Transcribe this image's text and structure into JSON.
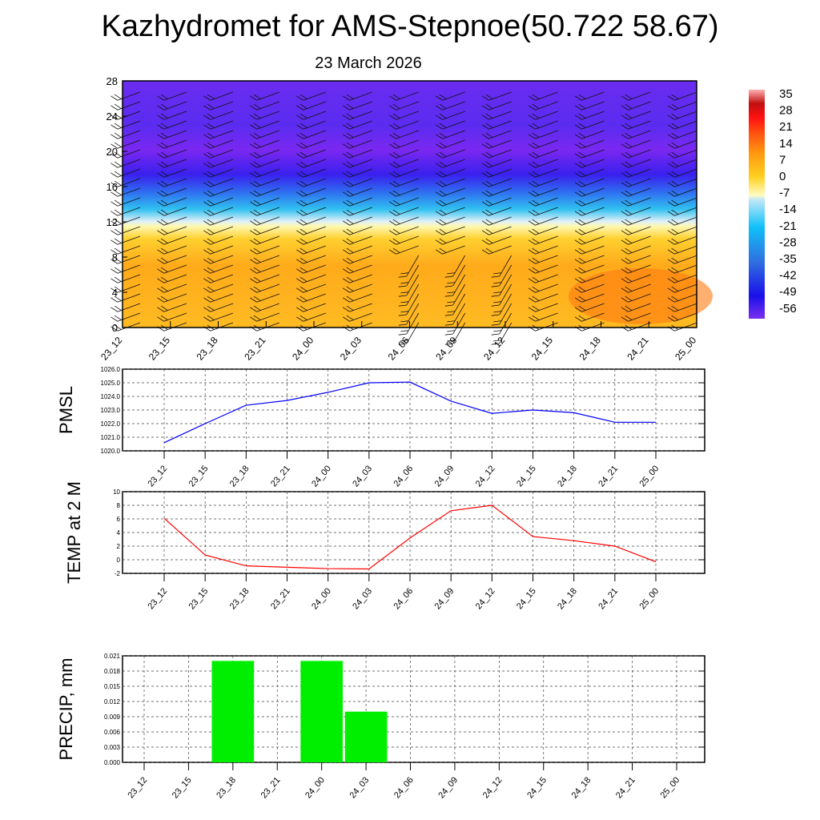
{
  "chart_data": [
    {
      "type": "heatmap",
      "title": "Kazhydromet for AMS-Stepnoe(50.722 58.67)",
      "subtitle": "23 March 2026",
      "x_categories": [
        "23_12",
        "23_15",
        "23_18",
        "23_21",
        "24_00",
        "24_03",
        "24_06",
        "24_09",
        "24_12",
        "24_15",
        "24_18",
        "24_21",
        "25_00"
      ],
      "yticks": [
        0,
        4,
        8,
        12,
        16,
        20,
        24,
        28
      ],
      "ylim": [
        0,
        28
      ],
      "colorbar": {
        "labels": [
          "35",
          "28",
          "21",
          "14",
          "7",
          "0",
          "-7",
          "-14",
          "-21",
          "-28",
          "-35",
          "-42",
          "-49",
          "-56"
        ]
      }
    },
    {
      "type": "line",
      "ylabel": "PMSL",
      "ylim": [
        1020,
        1026
      ],
      "yticks": [
        "1020.0",
        "1021.0",
        "1022.0",
        "1023.0",
        "1024.0",
        "1025.0",
        "1026.0"
      ],
      "categories": [
        "23_12",
        "23_15",
        "23_18",
        "23_21",
        "24_00",
        "24_03",
        "24_06",
        "24_09",
        "24_12",
        "24_15",
        "24_18",
        "24_21",
        "25_00"
      ],
      "values": [
        1020.6,
        1022.0,
        1023.35,
        1023.7,
        1024.3,
        1025.0,
        1025.05,
        1023.65,
        1022.75,
        1023.0,
        1022.8,
        1022.1,
        1022.1
      ],
      "color": "#0000ff"
    },
    {
      "type": "line",
      "ylabel": "TEMP at 2 M",
      "ylim": [
        -2,
        10
      ],
      "yticks": [
        "-2",
        "0",
        "2",
        "4",
        "6",
        "8",
        "10"
      ],
      "categories": [
        "23_12",
        "23_15",
        "23_18",
        "23_21",
        "24_00",
        "24_03",
        "24_06",
        "24_09",
        "24_12",
        "24_15",
        "24_18",
        "24_21",
        "25_00"
      ],
      "values": [
        6.1,
        0.7,
        -0.9,
        -1.1,
        -1.3,
        -1.35,
        3.2,
        7.2,
        8.0,
        3.4,
        2.8,
        2.0,
        -0.3
      ],
      "color": "#ff0000"
    },
    {
      "type": "bar",
      "ylabel": "PRECIP, mm",
      "ylim": [
        0,
        0.021
      ],
      "yticks": [
        "0.000",
        "0.003",
        "0.006",
        "0.009",
        "0.012",
        "0.015",
        "0.018",
        "0.021"
      ],
      "categories": [
        "23_12",
        "23_15",
        "23_18",
        "23_21",
        "24_00",
        "24_03",
        "24_06",
        "24_09",
        "24_12",
        "24_15",
        "24_18",
        "24_21",
        "25_00"
      ],
      "values": [
        0,
        0,
        0.02,
        0,
        0.02,
        0.01,
        0,
        0,
        0,
        0,
        0,
        0,
        0
      ],
      "color": "#00ee00"
    }
  ]
}
